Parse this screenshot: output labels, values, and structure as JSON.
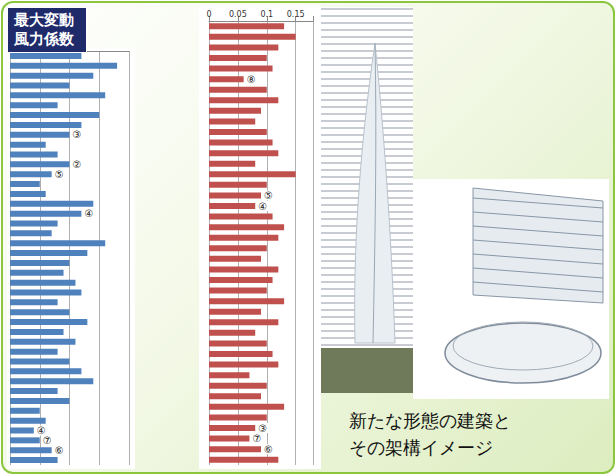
{
  "chart_data": [
    {
      "type": "bar",
      "title": "最大変動風力係数",
      "orientation": "horizontal",
      "color": "#4f81bd",
      "grid": true,
      "tick_labels": false,
      "xlim": [
        0,
        0.2
      ],
      "xticks": [
        0,
        0.05,
        0.1,
        0.15,
        0.2
      ],
      "values": [
        0.12,
        0.18,
        0.14,
        0.1,
        0.16,
        0.08,
        0.15,
        0.12,
        0.1,
        0.06,
        0.08,
        0.1,
        0.07,
        0.05,
        0.06,
        0.14,
        0.12,
        0.08,
        0.07,
        0.16,
        0.13,
        0.1,
        0.09,
        0.11,
        0.12,
        0.08,
        0.1,
        0.13,
        0.09,
        0.11,
        0.08,
        0.1,
        0.12,
        0.14,
        0.08,
        0.1,
        0.05,
        0.06,
        0.04,
        0.05,
        0.07,
        0.08
      ],
      "annotations": [
        {
          "index": 8,
          "text": "③"
        },
        {
          "index": 11,
          "text": "②"
        },
        {
          "index": 12,
          "text": "⑤"
        },
        {
          "index": 16,
          "text": "④"
        },
        {
          "index": 38,
          "text": "④"
        },
        {
          "index": 39,
          "text": "⑦"
        },
        {
          "index": 40,
          "text": "⑥"
        }
      ]
    },
    {
      "type": "bar",
      "orientation": "horizontal",
      "color": "#c0504d",
      "grid": true,
      "tick_labels": "x",
      "xlim": [
        0,
        0.18
      ],
      "xticks": [
        0,
        0.05,
        0.1,
        0.15
      ],
      "values": [
        0.13,
        0.15,
        0.12,
        0.1,
        0.11,
        0.06,
        0.1,
        0.12,
        0.09,
        0.08,
        0.1,
        0.11,
        0.12,
        0.08,
        0.15,
        0.1,
        0.09,
        0.08,
        0.11,
        0.13,
        0.12,
        0.1,
        0.09,
        0.12,
        0.11,
        0.1,
        0.13,
        0.09,
        0.12,
        0.08,
        0.1,
        0.11,
        0.12,
        0.07,
        0.1,
        0.09,
        0.13,
        0.1,
        0.08,
        0.07,
        0.09,
        0.12
      ],
      "annotations": [
        {
          "index": 5,
          "text": "⑧"
        },
        {
          "index": 16,
          "text": "⑤"
        },
        {
          "index": 17,
          "text": "④"
        },
        {
          "index": 38,
          "text": "③"
        },
        {
          "index": 39,
          "text": "⑦"
        },
        {
          "index": 40,
          "text": "⑥"
        }
      ]
    }
  ],
  "caption": "新たな形態の建築とその架構イメージ"
}
